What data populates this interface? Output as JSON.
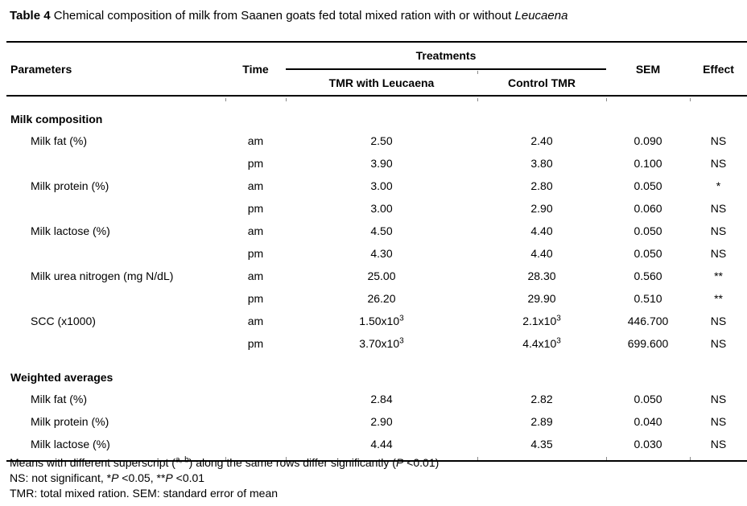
{
  "colors": {
    "background": "#ffffff",
    "text": "#000000",
    "rule": "#000000",
    "border_tick": "#8a8a8a"
  },
  "title": {
    "segments": [
      {
        "text": "Table 4",
        "bold": true
      },
      {
        "text": " Chemical composition of milk from Saanen goats fed total mixed ration with or without "
      },
      {
        "text": "Leucaena",
        "italic": true
      }
    ]
  },
  "table": {
    "headers": {
      "parameters": "Parameters",
      "time": "Time",
      "treatments_group": "Treatments",
      "treatment1_segments": [
        {
          "text": "TMR with "
        },
        {
          "text": "Leucaena",
          "italic": true
        }
      ],
      "treatment2": "Control TMR",
      "sem": "SEM",
      "effect": "Effect"
    },
    "sections": [
      {
        "label": "Milk composition",
        "rows": [
          {
            "parameter": "Milk fat (%)",
            "time": "am",
            "tmr_with_leucaena": "2.50",
            "control_tmr": "2.40",
            "sem": "0.090",
            "effect": "NS"
          },
          {
            "parameter": "",
            "time": "pm",
            "tmr_with_leucaena": "3.90",
            "control_tmr": "3.80",
            "sem": "0.100",
            "effect": "NS"
          },
          {
            "parameter": "Milk protein (%)",
            "time": "am",
            "tmr_with_leucaena": "3.00",
            "control_tmr": "2.80",
            "sem": "0.050",
            "effect": "*"
          },
          {
            "parameter": "",
            "time": "pm",
            "tmr_with_leucaena": "3.00",
            "control_tmr": "2.90",
            "sem": "0.060",
            "effect": "NS"
          },
          {
            "parameter": "Milk lactose (%)",
            "time": "am",
            "tmr_with_leucaena": "4.50",
            "control_tmr": "4.40",
            "sem": "0.050",
            "effect": "NS"
          },
          {
            "parameter": "",
            "time": "pm",
            "tmr_with_leucaena": "4.30",
            "control_tmr": "4.40",
            "sem": "0.050",
            "effect": "NS"
          },
          {
            "parameter": "Milk urea nitrogen (mg N/dL)",
            "time": "am",
            "tmr_with_leucaena": "25.00",
            "control_tmr": "28.30",
            "sem": "0.560",
            "effect": "**"
          },
          {
            "parameter": "",
            "time": "pm",
            "tmr_with_leucaena": "26.20",
            "control_tmr": "29.90",
            "sem": "0.510",
            "effect": "**"
          },
          {
            "parameter": "SCC (x1000)",
            "time": "am",
            "tmr_with_leucaena": "1.50x10^3",
            "control_tmr": "2.1x10^3",
            "sem": "446.700",
            "effect": "NS"
          },
          {
            "parameter": "",
            "time": "pm",
            "tmr_with_leucaena": "3.70x10^3",
            "control_tmr": "4.4x10^3",
            "sem": "699.600",
            "effect": "NS"
          }
        ]
      },
      {
        "label": "Weighted averages",
        "rows": [
          {
            "parameter": "Milk fat (%)",
            "time": "",
            "tmr_with_leucaena": "2.84",
            "control_tmr": "2.82",
            "sem": "0.050",
            "effect": "NS"
          },
          {
            "parameter": "Milk protein (%)",
            "time": "",
            "tmr_with_leucaena": "2.90",
            "control_tmr": "2.89",
            "sem": "0.040",
            "effect": "NS"
          },
          {
            "parameter": "Milk lactose (%)",
            "time": "",
            "tmr_with_leucaena": "4.44",
            "control_tmr": "4.35",
            "sem": "0.030",
            "effect": "NS"
          }
        ]
      }
    ]
  },
  "footnotes": [
    {
      "segments": [
        {
          "text": "Means with different superscript ("
        },
        {
          "text": "a, b",
          "sup": true
        },
        {
          "text": ") along the same rows differ significantly ("
        },
        {
          "text": "P",
          "italic": true
        },
        {
          "text": " <0.01)"
        }
      ]
    },
    {
      "segments": [
        {
          "text": "NS: not significant, *"
        },
        {
          "text": "P",
          "italic": true
        },
        {
          "text": " <0.05, **"
        },
        {
          "text": "P",
          "italic": true
        },
        {
          "text": " <0.01"
        }
      ]
    },
    {
      "segments": [
        {
          "text": "TMR: total mixed ration. SEM: standard error of mean"
        }
      ]
    }
  ]
}
